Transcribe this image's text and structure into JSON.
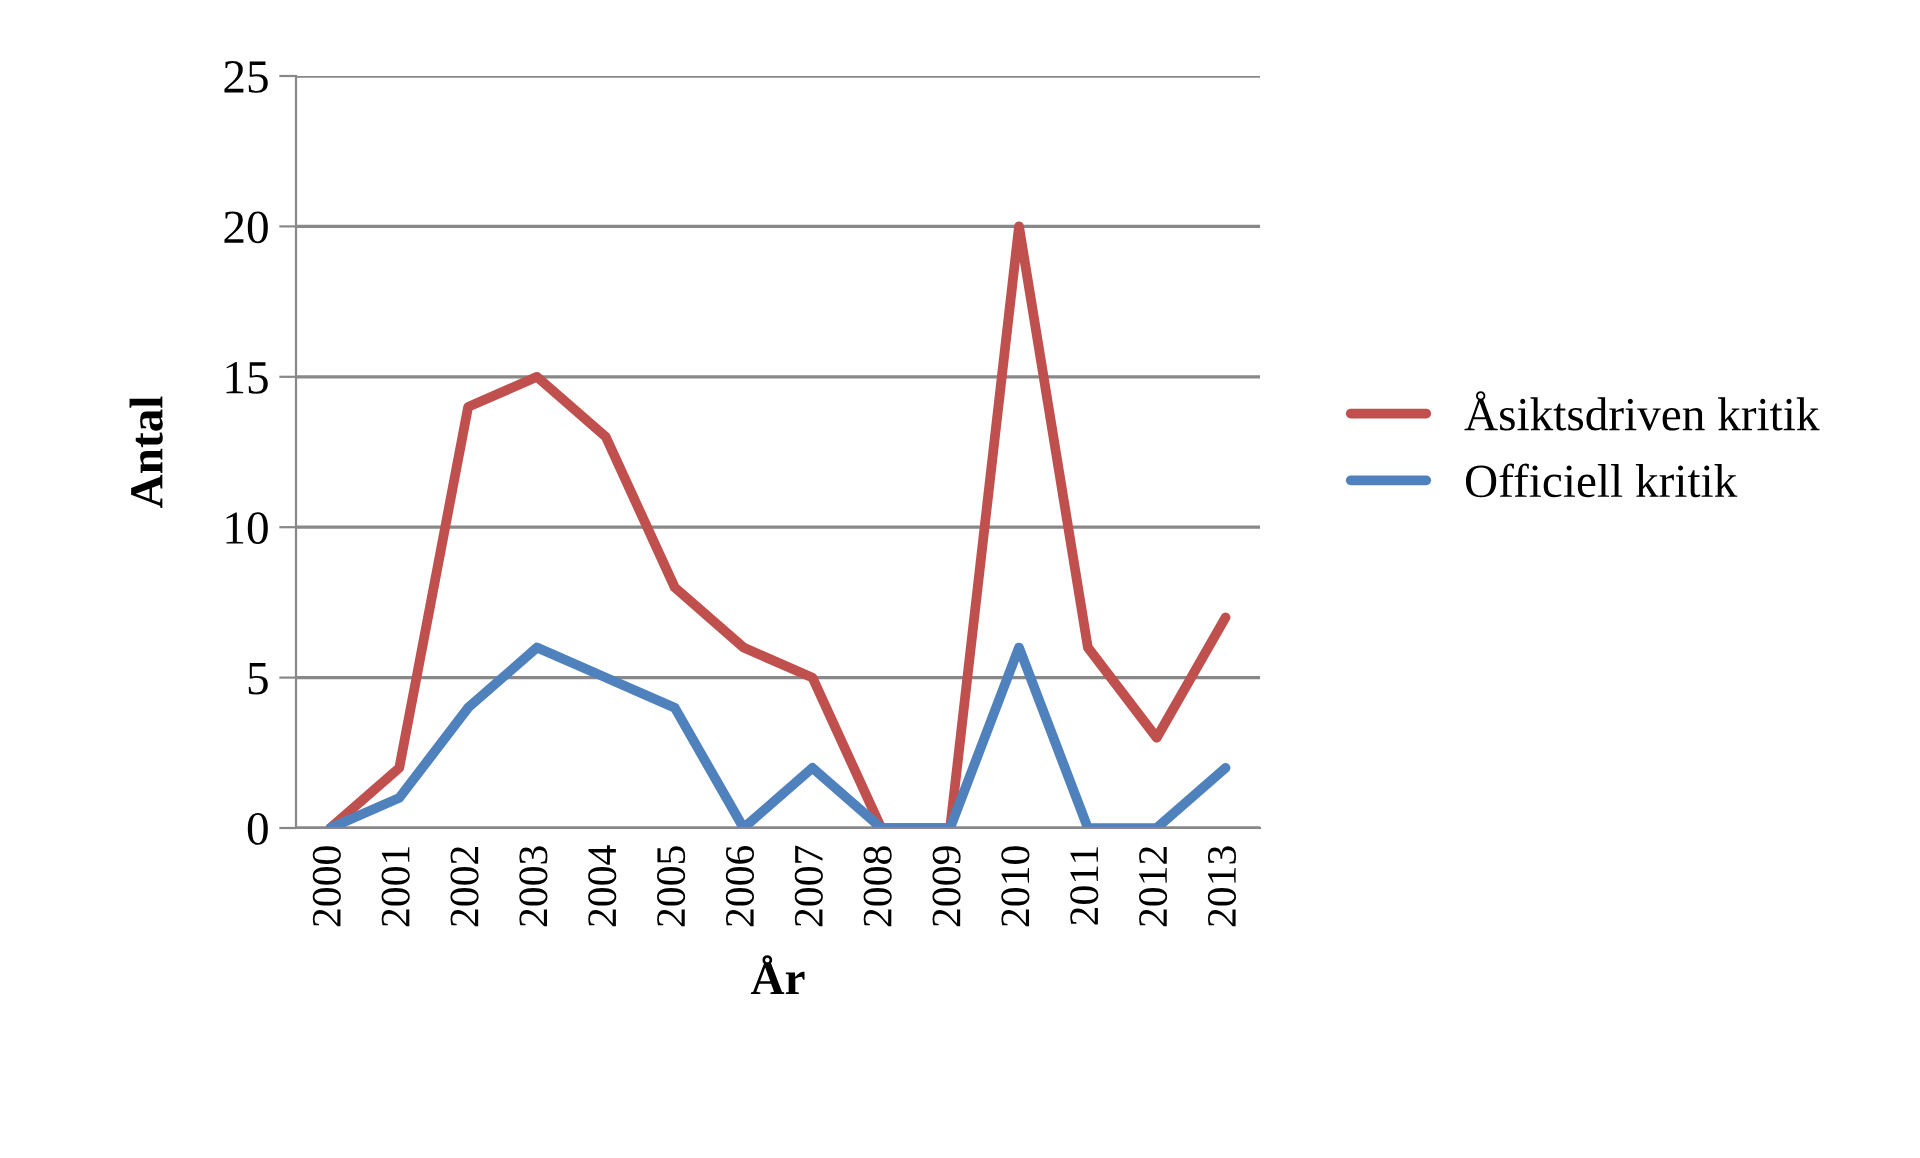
{
  "chart_data": {
    "type": "line",
    "xlabel": "År",
    "ylabel": "Antal",
    "categories": [
      "2000",
      "2001",
      "2002",
      "2003",
      "2004",
      "2005",
      "2006",
      "2007",
      "2008",
      "2009",
      "2010",
      "2011",
      "2012",
      "2013"
    ],
    "series": [
      {
        "name": "Åsiktsdriven kritik",
        "color": "#c0504d",
        "values": [
          0,
          2,
          14,
          15,
          13,
          8,
          6,
          5,
          0,
          0,
          20,
          6,
          3,
          7
        ]
      },
      {
        "name": "Officiell kritik",
        "color": "#4f81bd",
        "values": [
          0,
          1,
          4,
          6,
          5,
          4,
          0,
          2,
          0,
          0,
          6,
          0,
          0,
          2
        ]
      }
    ],
    "ylim": [
      0,
      25
    ],
    "yticks": [
      0,
      5,
      10,
      15,
      20,
      25
    ],
    "grid": "y",
    "legend": "right",
    "marker": "none",
    "line_style": "solid"
  }
}
